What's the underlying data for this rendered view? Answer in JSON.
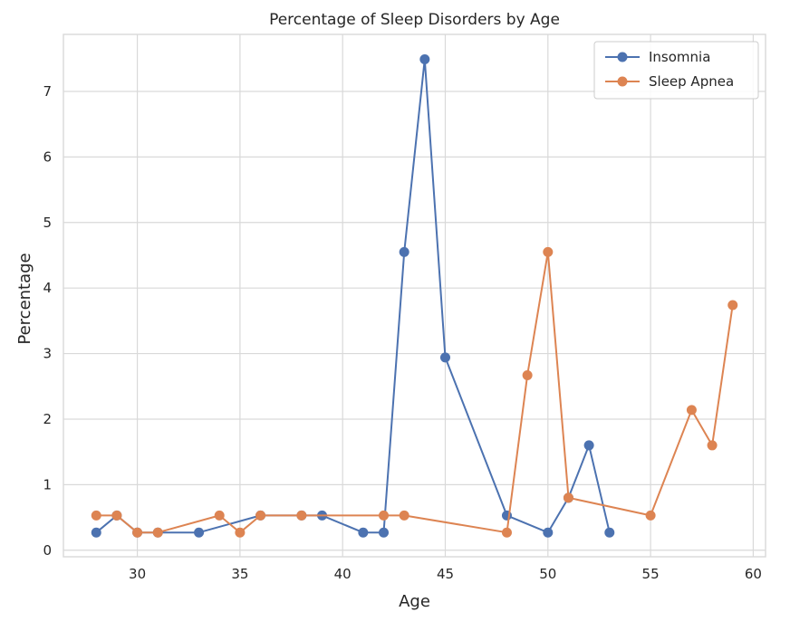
{
  "chart_data": {
    "type": "line",
    "title": "Percentage of Sleep Disorders by Age",
    "xlabel": "Age",
    "ylabel": "Percentage",
    "xlim": [
      26.4,
      60.6
    ],
    "ylim": [
      -0.1,
      7.87
    ],
    "xticks": [
      30,
      35,
      40,
      45,
      50,
      55,
      60
    ],
    "yticks": [
      0,
      1,
      2,
      3,
      4,
      5,
      6,
      7
    ],
    "grid": true,
    "legend_position": "top-right",
    "series": [
      {
        "name": "Insomnia",
        "color": "#4c72b0",
        "x": [
          28,
          29,
          30,
          31,
          33,
          36,
          38,
          39,
          41,
          42,
          43,
          44,
          45,
          48,
          50,
          51,
          52,
          53
        ],
        "y": [
          0.27,
          0.53,
          0.27,
          0.27,
          0.27,
          0.53,
          0.53,
          0.53,
          0.27,
          0.27,
          4.55,
          7.49,
          2.94,
          0.53,
          0.27,
          0.8,
          1.6,
          0.27
        ]
      },
      {
        "name": "Sleep Apnea",
        "color": "#dd8452",
        "x": [
          28,
          29,
          30,
          31,
          34,
          35,
          36,
          38,
          42,
          43,
          48,
          49,
          50,
          51,
          55,
          57,
          58,
          59
        ],
        "y": [
          0.53,
          0.53,
          0.27,
          0.27,
          0.53,
          0.27,
          0.53,
          0.53,
          0.53,
          0.53,
          0.27,
          2.67,
          4.55,
          0.8,
          0.53,
          2.14,
          1.6,
          3.74
        ]
      }
    ]
  }
}
